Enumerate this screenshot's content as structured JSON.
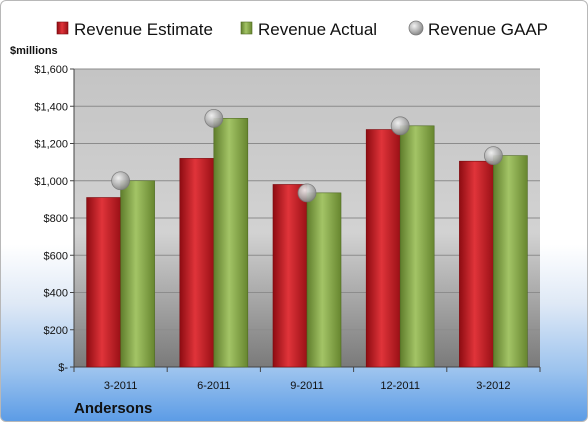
{
  "chart_data": {
    "type": "bar",
    "ylabel": "$millions",
    "xlabel": "Andersons",
    "categories": [
      "3-2011",
      "6-2011",
      "9-2011",
      "12-2011",
      "3-2012"
    ],
    "series": [
      {
        "name": "Revenue Estimate",
        "type": "bar",
        "color": "#c0141c",
        "values": [
          910,
          1120,
          980,
          1275,
          1105
        ]
      },
      {
        "name": "Revenue Actual",
        "type": "bar",
        "color": "#86aa45",
        "values": [
          1000,
          1335,
          935,
          1295,
          1135
        ]
      },
      {
        "name": "Revenue GAAP",
        "type": "marker",
        "color": "#b4b4b4",
        "values": [
          1000,
          1335,
          935,
          1295,
          1135
        ]
      }
    ],
    "ylim": [
      0,
      1600
    ],
    "yticks": [
      0,
      200,
      400,
      600,
      800,
      1000,
      1200,
      1400,
      1600
    ],
    "ytick_labels": [
      "$-",
      "$200",
      "$400",
      "$600",
      "$800",
      "$1,000",
      "$1,200",
      "$1,400",
      "$1,600"
    ],
    "grid": true,
    "legend": "top"
  }
}
